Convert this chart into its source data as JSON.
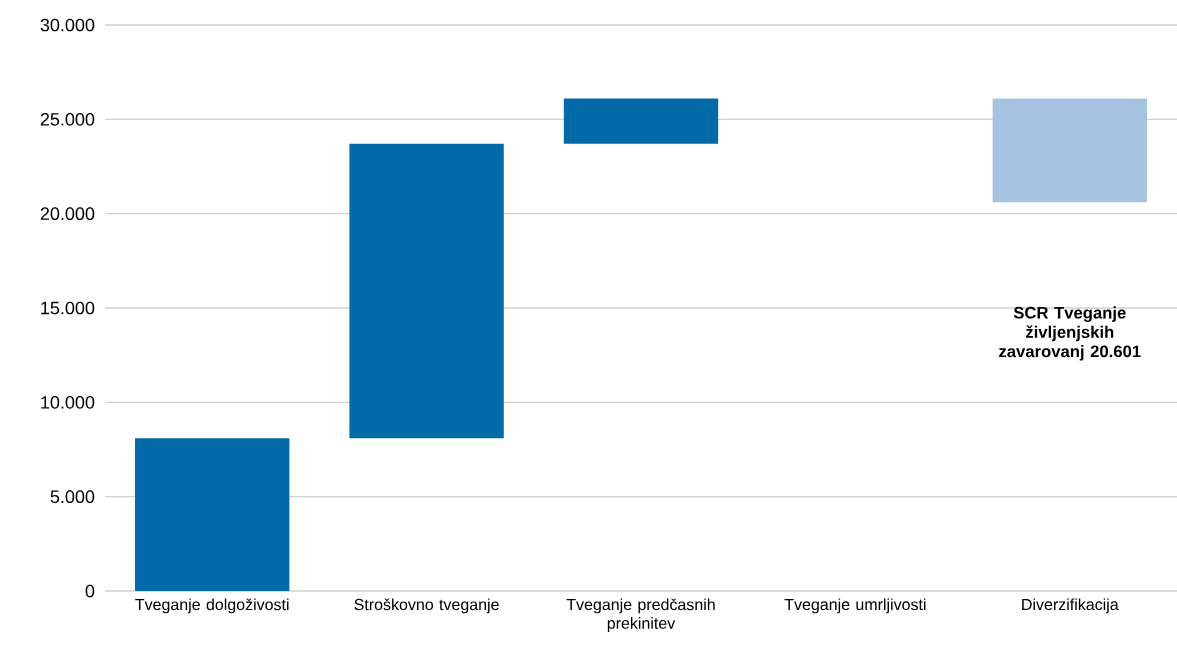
{
  "chart_data": {
    "type": "bar",
    "categories": [
      "Tveganje dolgoživosti",
      "Stroškovno tveganje",
      "Tveganje predčasnih prekinitev",
      "Tveganje umrljivosti",
      "Diverzifikacija"
    ],
    "values": [
      8100,
      15600,
      2400,
      null,
      -5499
    ],
    "base": [
      0,
      8100,
      23700,
      null,
      26100
    ],
    "colors": [
      "#006aa6",
      "#006aa6",
      "#006aa6",
      "#006aa6",
      "#a5c3e0"
    ],
    "ylim": [
      0,
      30000
    ],
    "yticks": [
      0,
      {
        "value": 5000,
        "label": "5.000"
      },
      {
        "value": 10000,
        "label": "10.000"
      },
      {
        "value": 15000,
        "label": "15.000"
      },
      {
        "value": 20000,
        "label": "20.000"
      },
      {
        "value": 25000,
        "label": "25.000"
      },
      {
        "value": 30000,
        "label": "30.000"
      }
    ],
    "grid": "y",
    "annotations": [
      "**SCR Tveganje življenjskih zavarovanj 20.601**"
    ]
  }
}
